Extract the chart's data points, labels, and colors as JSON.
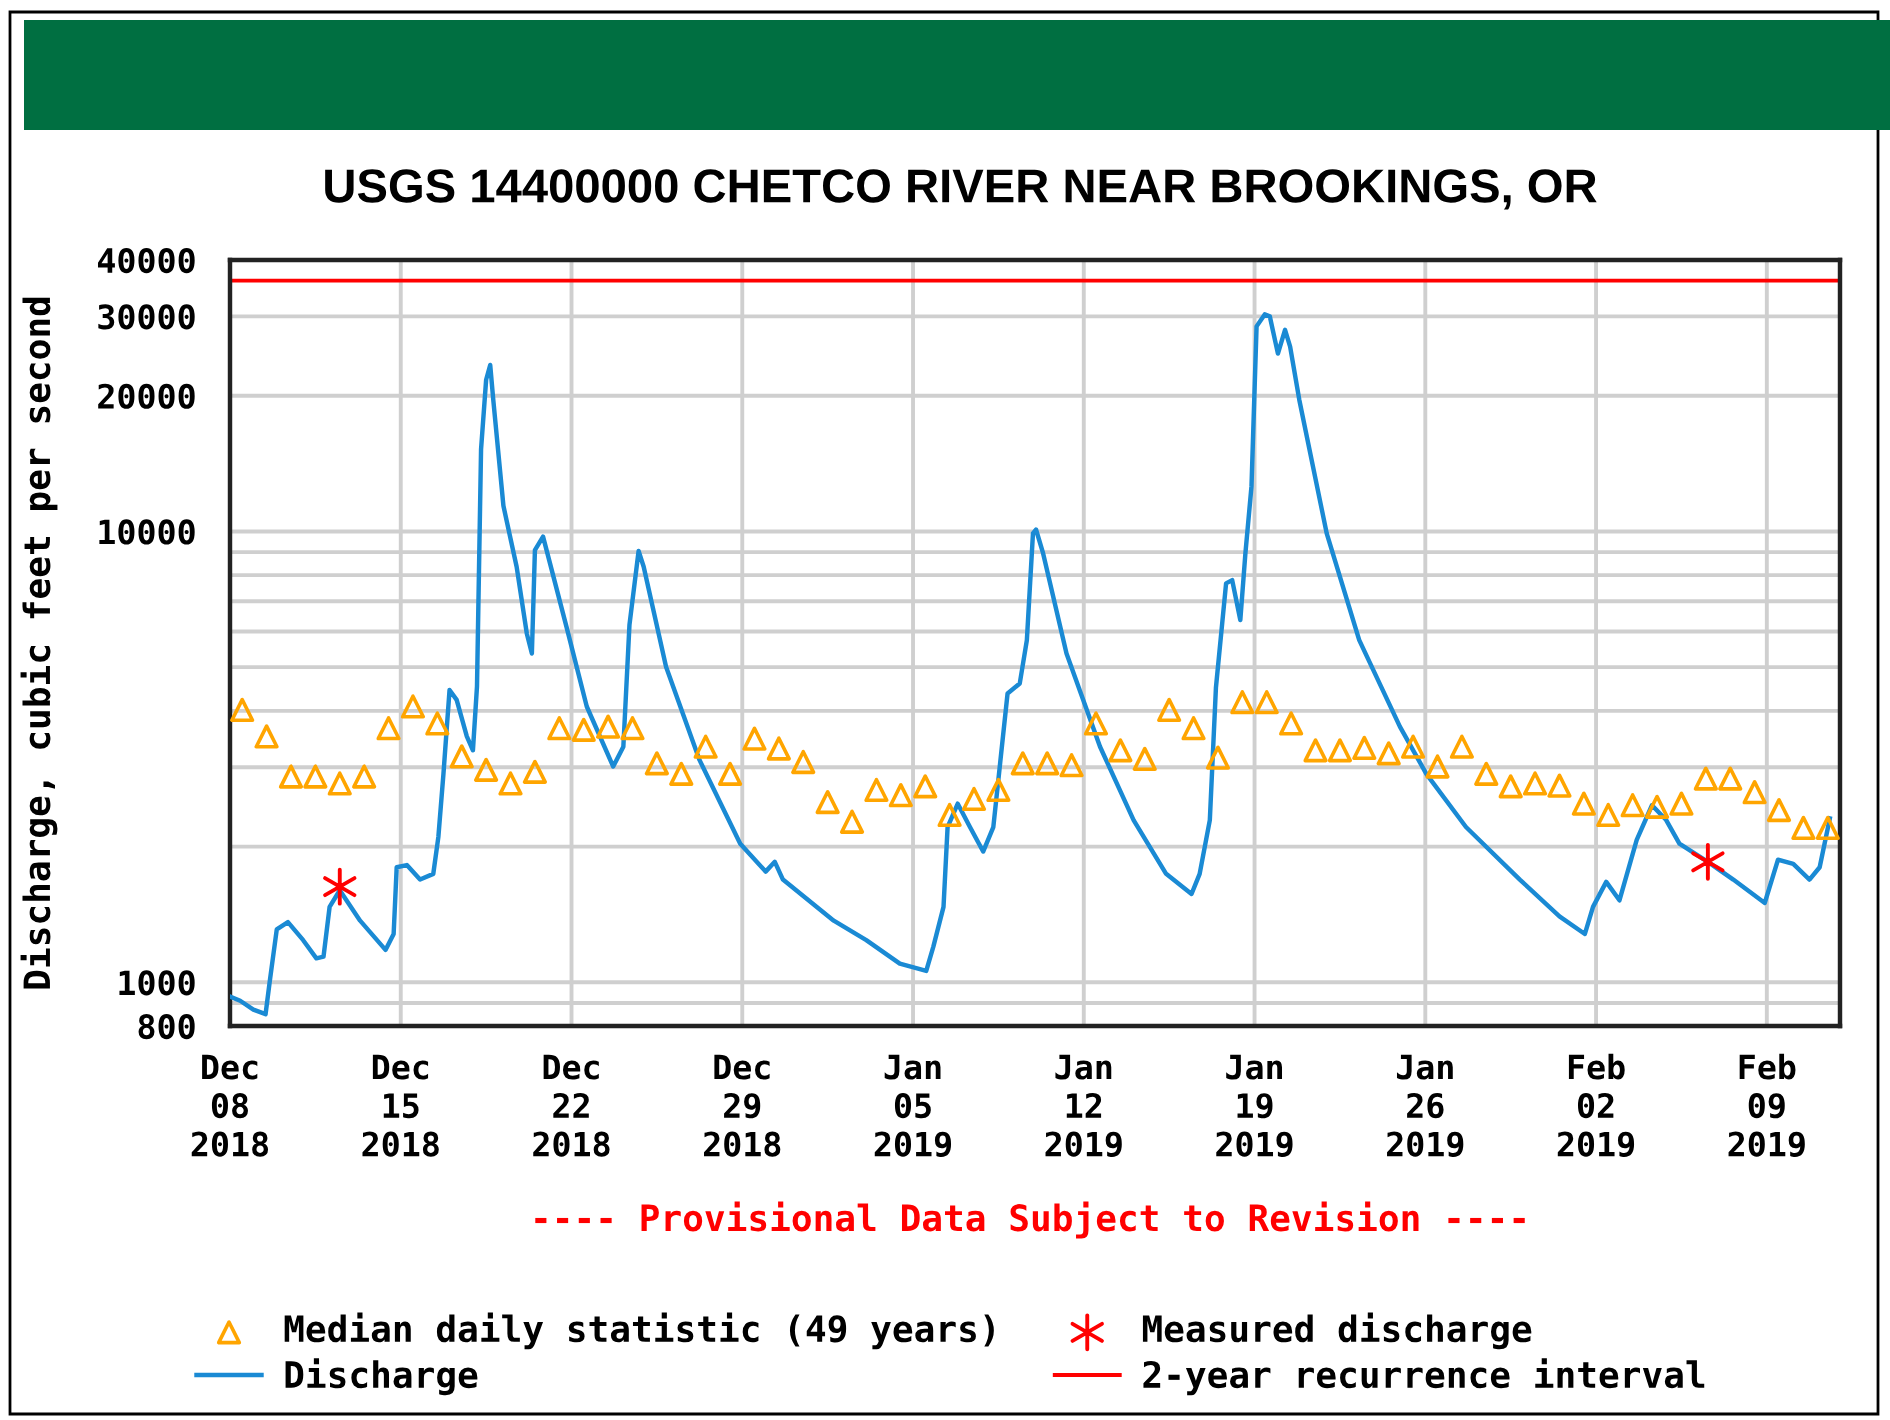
{
  "chart_data": {
    "type": "line",
    "title": "USGS 14400000 CHETCO RIVER NEAR BROOKINGS, OR",
    "ylabel": "Discharge, cubic feet per second",
    "annotations": [
      "---- Provisional Data Subject to Revision ----"
    ],
    "log": "y",
    "grid": true,
    "legend": "bottom",
    "xlim": [
      "2018-12-08",
      "2019-02-12"
    ],
    "xticks": [
      {
        "value": "2018-12-08",
        "label": "Dec\n08\n2018"
      },
      {
        "value": "2018-12-15",
        "label": "Dec\n15\n2018"
      },
      {
        "value": "2018-12-22",
        "label": "Dec\n22\n2018"
      },
      {
        "value": "2018-12-29",
        "label": "Dec\n29\n2018"
      },
      {
        "value": "2019-01-05",
        "label": "Jan\n05\n2019"
      },
      {
        "value": "2019-01-12",
        "label": "Jan\n12\n2019"
      },
      {
        "value": "2019-01-19",
        "label": "Jan\n19\n2019"
      },
      {
        "value": "2019-01-26",
        "label": "Jan\n26\n2019"
      },
      {
        "value": "2019-02-02",
        "label": "Feb\n02\n2019"
      },
      {
        "value": "2019-02-09",
        "label": "Feb\n09\n2019"
      }
    ],
    "ylim": [
      800,
      40000
    ],
    "yticks": [
      800,
      {
        "value": 900,
        "label": null
      },
      1000,
      {
        "value": 2000,
        "label": null
      },
      {
        "value": 3000,
        "label": null
      },
      {
        "value": 4000,
        "label": null
      },
      {
        "value": 5000,
        "label": null
      },
      {
        "value": 6000,
        "label": null
      },
      {
        "value": 7000,
        "label": null
      },
      {
        "value": 8000,
        "label": null
      },
      {
        "value": 9000,
        "label": null
      },
      10000,
      20000,
      30000,
      40000
    ],
    "ref_lines": [
      {
        "axis": "y",
        "value": 36000,
        "label": "2-year recurrence interval",
        "color": "#ff0000"
      }
    ],
    "series": [
      {
        "name": "Median daily statistic (49 years)",
        "type": "scatter",
        "marker": "triangle",
        "color": "#ffa500",
        "x": [
          "2018-12-08T12:00",
          "2018-12-09T12:00",
          "2018-12-10T12:00",
          "2018-12-11T12:00",
          "2018-12-12T12:00",
          "2018-12-13T12:00",
          "2018-12-14T12:00",
          "2018-12-15T12:00",
          "2018-12-16T12:00",
          "2018-12-17T12:00",
          "2018-12-18T12:00",
          "2018-12-19T12:00",
          "2018-12-20T12:00",
          "2018-12-21T12:00",
          "2018-12-22T12:00",
          "2018-12-23T12:00",
          "2018-12-24T12:00",
          "2018-12-25T12:00",
          "2018-12-26T12:00",
          "2018-12-27T12:00",
          "2018-12-28T12:00",
          "2018-12-29T12:00",
          "2018-12-30T12:00",
          "2018-12-31T12:00",
          "2019-01-01T12:00",
          "2019-01-02T12:00",
          "2019-01-03T12:00",
          "2019-01-04T12:00",
          "2019-01-05T12:00",
          "2019-01-06T12:00",
          "2019-01-07T12:00",
          "2019-01-08T12:00",
          "2019-01-09T12:00",
          "2019-01-10T12:00",
          "2019-01-11T12:00",
          "2019-01-12T12:00",
          "2019-01-13T12:00",
          "2019-01-14T12:00",
          "2019-01-15T12:00",
          "2019-01-16T12:00",
          "2019-01-17T12:00",
          "2019-01-18T12:00",
          "2019-01-19T12:00",
          "2019-01-20T12:00",
          "2019-01-21T12:00",
          "2019-01-22T12:00",
          "2019-01-23T12:00",
          "2019-01-24T12:00",
          "2019-01-25T12:00",
          "2019-01-26T12:00",
          "2019-01-27T12:00",
          "2019-01-28T12:00",
          "2019-01-29T12:00",
          "2019-01-30T12:00",
          "2019-01-31T12:00",
          "2019-02-01T12:00",
          "2019-02-02T12:00",
          "2019-02-03T12:00",
          "2019-02-04T12:00",
          "2019-02-05T12:00",
          "2019-02-06T12:00",
          "2019-02-07T12:00",
          "2019-02-08T12:00",
          "2019-02-09T12:00",
          "2019-02-10T12:00",
          "2019-02-11T12:00"
        ],
        "values": [
          4020,
          3510,
          2860,
          2860,
          2760,
          2860,
          3660,
          4090,
          3750,
          3170,
          2960,
          2760,
          2930,
          3660,
          3630,
          3690,
          3660,
          3060,
          2900,
          3330,
          2900,
          3470,
          3300,
          3080,
          2510,
          2270,
          2670,
          2600,
          2720,
          2350,
          2550,
          2670,
          3060,
          3060,
          3030,
          3750,
          3270,
          3130,
          4020,
          3660,
          3150,
          4180,
          4180,
          3750,
          3270,
          3270,
          3310,
          3220,
          3330,
          3010,
          3330,
          2900,
          2720,
          2760,
          2730,
          2490,
          2350,
          2470,
          2450,
          2490,
          2830,
          2830,
          2640,
          2410,
          2200,
          2200
        ]
      },
      {
        "name": "Discharge",
        "color": "#1a8ad4",
        "line_style": "solid",
        "x": [
          "2018-12-08T00:00",
          "2018-12-08T10:00",
          "2018-12-08T23:00",
          "2018-12-09T11:00",
          "2018-12-09T15:00",
          "2018-12-09T22:00",
          "2018-12-10T09:00",
          "2018-12-11T00:00",
          "2018-12-11T13:00",
          "2018-12-11T20:00",
          "2018-12-12T02:00",
          "2018-12-12T12:00",
          "2018-12-13T08:00",
          "2018-12-14T09:00",
          "2018-12-14T17:00",
          "2018-12-14T20:00",
          "2018-12-15T06:00",
          "2018-12-15T19:00",
          "2018-12-16T08:00",
          "2018-12-16T13:00",
          "2018-12-16T18:00",
          "2018-12-17T00:00",
          "2018-12-17T07:00",
          "2018-12-17T17:00",
          "2018-12-17T23:00",
          "2018-12-18T03:00",
          "2018-12-18T07:00",
          "2018-12-18T12:00",
          "2018-12-18T16:00",
          "2018-12-18T19:00",
          "2018-12-19T05:00",
          "2018-12-19T18:00",
          "2018-12-20T04:00",
          "2018-12-20T09:00",
          "2018-12-20T12:00",
          "2018-12-20T20:00",
          "2018-12-21T19:00",
          "2018-12-22T15:00",
          "2018-12-23T17:00",
          "2018-12-24T03:00",
          "2018-12-24T09:00",
          "2018-12-24T18:00",
          "2018-12-24T23:00",
          "2018-12-25T21:00",
          "2018-12-27T06:00",
          "2018-12-28T22:00",
          "2018-12-29T23:00",
          "2018-12-30T08:00",
          "2018-12-30T16:00",
          "2019-01-01T18:00",
          "2019-01-03T02:00",
          "2019-01-04T11:00",
          "2019-01-05T13:00",
          "2019-01-05T20:00",
          "2019-01-06T06:00",
          "2019-01-06T10:00",
          "2019-01-06T20:00",
          "2019-01-07T08:00",
          "2019-01-07T21:00",
          "2019-01-08T07:00",
          "2019-01-08T21:00",
          "2019-01-09T09:00",
          "2019-01-09T16:00",
          "2019-01-09T22:00",
          "2019-01-10T01:00",
          "2019-01-10T08:00",
          "2019-01-11T07:00",
          "2019-01-12T16:00",
          "2019-01-14T01:00",
          "2019-01-15T09:00",
          "2019-01-16T10:00",
          "2019-01-16T18:00",
          "2019-01-17T04:00",
          "2019-01-17T10:00",
          "2019-01-17T20:00",
          "2019-01-18T02:00",
          "2019-01-18T10:00",
          "2019-01-18T15:00",
          "2019-01-18T21:00",
          "2019-01-19T02:00",
          "2019-01-19T10:00",
          "2019-01-19T15:00",
          "2019-01-19T23:00",
          "2019-01-20T06:00",
          "2019-01-20T11:00",
          "2019-01-20T20:00",
          "2019-01-21T23:00",
          "2019-01-23T07:00",
          "2019-01-24T23:00",
          "2019-01-26T01:00",
          "2019-01-27T16:00",
          "2019-01-29T21:00",
          "2019-01-31T12:00",
          "2019-02-01T13:00",
          "2019-02-01T21:00",
          "2019-02-02T10:00",
          "2019-02-02T23:00",
          "2019-02-03T16:00",
          "2019-02-04T07:00",
          "2019-02-04T21:00",
          "2019-02-05T10:00",
          "2019-02-06T14:00",
          "2019-02-07T15:00",
          "2019-02-08T22:00",
          "2019-02-09T11:00",
          "2019-02-10T02:00",
          "2019-02-10T18:00",
          "2019-02-11T04:00",
          "2019-02-11T14:00"
        ],
        "values": [
          930,
          910,
          870,
          850,
          1000,
          1310,
          1360,
          1240,
          1130,
          1140,
          1470,
          1600,
          1370,
          1180,
          1280,
          1800,
          1820,
          1690,
          1740,
          2100,
          2900,
          4450,
          4230,
          3510,
          3270,
          4530,
          15200,
          21700,
          23400,
          19600,
          11400,
          8350,
          5940,
          5360,
          9090,
          9740,
          6150,
          4090,
          3010,
          3330,
          6200,
          9050,
          8350,
          5010,
          3110,
          2030,
          1760,
          1850,
          1690,
          1370,
          1240,
          1100,
          1060,
          1200,
          1470,
          2210,
          2490,
          2210,
          1950,
          2210,
          4370,
          4600,
          5740,
          9900,
          10100,
          8940,
          5360,
          3330,
          2290,
          1740,
          1570,
          1740,
          2290,
          4500,
          7670,
          7800,
          6360,
          8940,
          12600,
          28500,
          30300,
          30000,
          24800,
          28000,
          25700,
          19600,
          9900,
          5740,
          3690,
          2900,
          2210,
          1690,
          1400,
          1280,
          1470,
          1670,
          1520,
          2070,
          2470,
          2290,
          2030,
          1850,
          1690,
          1500,
          1870,
          1830,
          1690,
          1800,
          2310
        ]
      },
      {
        "name": "Measured discharge",
        "type": "scatter",
        "marker": "cross",
        "color": "#ff0000",
        "x": [
          "2018-12-12T12:00",
          "2019-02-06T14:00"
        ],
        "values": [
          1630,
          1850
        ]
      }
    ]
  }
}
